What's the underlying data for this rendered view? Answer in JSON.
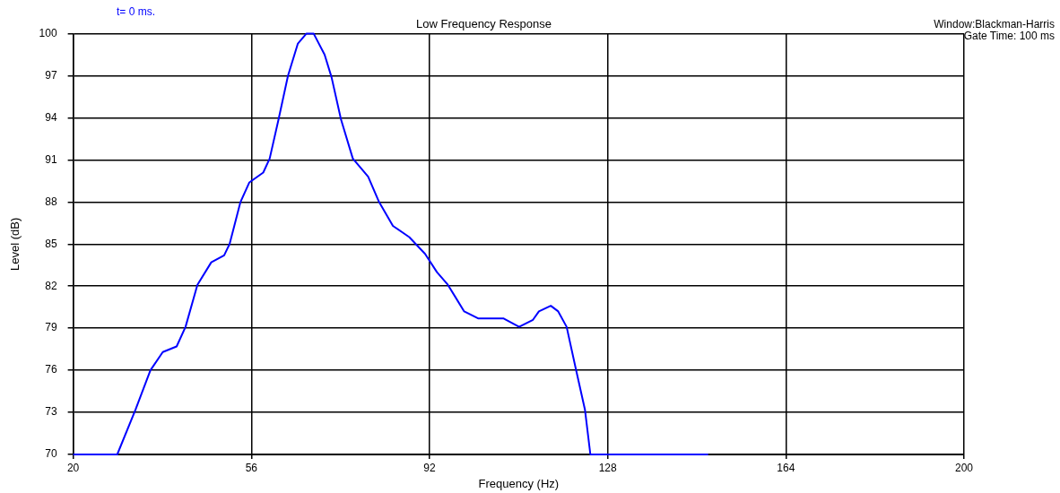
{
  "chart_data": {
    "type": "line",
    "title": "Low Frequency Response",
    "xlabel": "Frequency (Hz)",
    "ylabel": "Level (dB)",
    "annotations": [
      "t= 0 ms.",
      "Window:Blackman-Harris",
      "Gate Time: 100 ms"
    ],
    "x": [
      20,
      28.9,
      32.6,
      35.6,
      38.1,
      40.9,
      42.7,
      45.1,
      47.9,
      50.5,
      51.6,
      53.8,
      55.6,
      58.4,
      59.7,
      61.5,
      63.4,
      65.4,
      67.1,
      68.6,
      70.8,
      72.2,
      74.1,
      76.5,
      79.6,
      81.8,
      84.6,
      87.9,
      91.1,
      93.5,
      95.7,
      99.0,
      101.8,
      106.9,
      110.1,
      112.9,
      114.1,
      116.5,
      118.0,
      119.7,
      121.5,
      123.4,
      124.5,
      148.3
    ],
    "series": [
      {
        "color": "#0000ff",
        "values": [
          70,
          70,
          73.2,
          76.0,
          77.3,
          77.7,
          79.1,
          82.1,
          83.7,
          84.2,
          85.0,
          88.0,
          89.4,
          90.1,
          91.1,
          93.9,
          97.0,
          99.3,
          100,
          100,
          98.5,
          96.9,
          93.9,
          91.1,
          89.8,
          88.0,
          86.3,
          85.5,
          84.3,
          83.0,
          82.1,
          80.2,
          79.7,
          79.7,
          79.1,
          79.6,
          80.2,
          80.6,
          80.2,
          79.1,
          76.2,
          73.2,
          70,
          70
        ]
      }
    ],
    "xlim": [
      20,
      200
    ],
    "xticks": [
      20,
      56,
      92,
      128,
      164,
      200
    ],
    "ylim": [
      70,
      100
    ],
    "yticks": [
      70,
      73,
      76,
      79,
      82,
      85,
      88,
      91,
      94,
      97,
      100
    ],
    "grid": true,
    "legend": false,
    "marker": "none",
    "line_style": "solid"
  }
}
